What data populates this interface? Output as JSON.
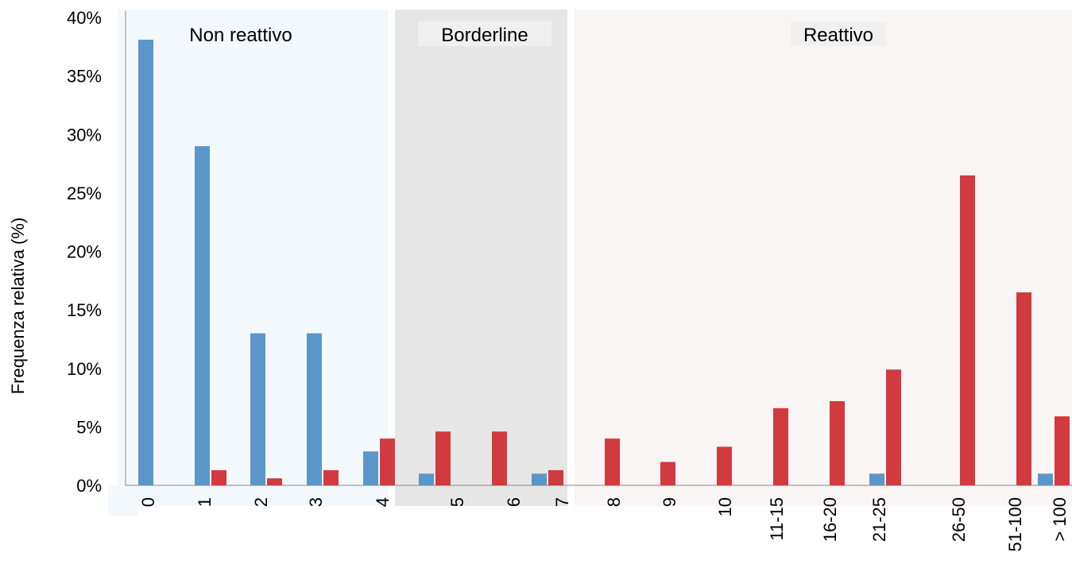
{
  "chart_data": {
    "type": "bar",
    "ylabel": "Frequenza relativa (%)",
    "xlabel": "",
    "ylim": [
      0,
      40
    ],
    "y_ticks": [
      0,
      5,
      10,
      15,
      20,
      25,
      30,
      35,
      40
    ],
    "y_tick_labels": [
      "0%",
      "5%",
      "10%",
      "15%",
      "20%",
      "25%",
      "30%",
      "35%",
      "40%"
    ],
    "grid": false,
    "legend": "none",
    "categories": [
      "0",
      "1",
      "2",
      "3",
      "4",
      "5",
      "6",
      "7",
      "8",
      "9",
      "10",
      "11-15",
      "16-20",
      "21-25",
      "26-50",
      "51-100",
      "> 100"
    ],
    "series": [
      {
        "color": "#5b96c8",
        "values": [
          38.1,
          29.0,
          13.0,
          13.0,
          2.9,
          1.0,
          0,
          1.0,
          0,
          0,
          0,
          0,
          0,
          1.0,
          0,
          0,
          1.0
        ]
      },
      {
        "color": "#d13a3f",
        "values": [
          0,
          1.3,
          0.6,
          1.3,
          4.0,
          4.6,
          4.6,
          1.3,
          4.0,
          2.0,
          3.3,
          6.6,
          7.2,
          9.9,
          26.5,
          16.5,
          5.9
        ]
      }
    ],
    "zones": [
      {
        "label": "Non reattivo",
        "from": "0",
        "to": "4",
        "color": "#f3f8fc"
      },
      {
        "label": "Borderline",
        "from": "5",
        "to": "7",
        "color": "#e6e6e6"
      },
      {
        "label": "Reattivo",
        "from": "8",
        "to": "> 100",
        "color": "#faf5f5"
      }
    ]
  }
}
